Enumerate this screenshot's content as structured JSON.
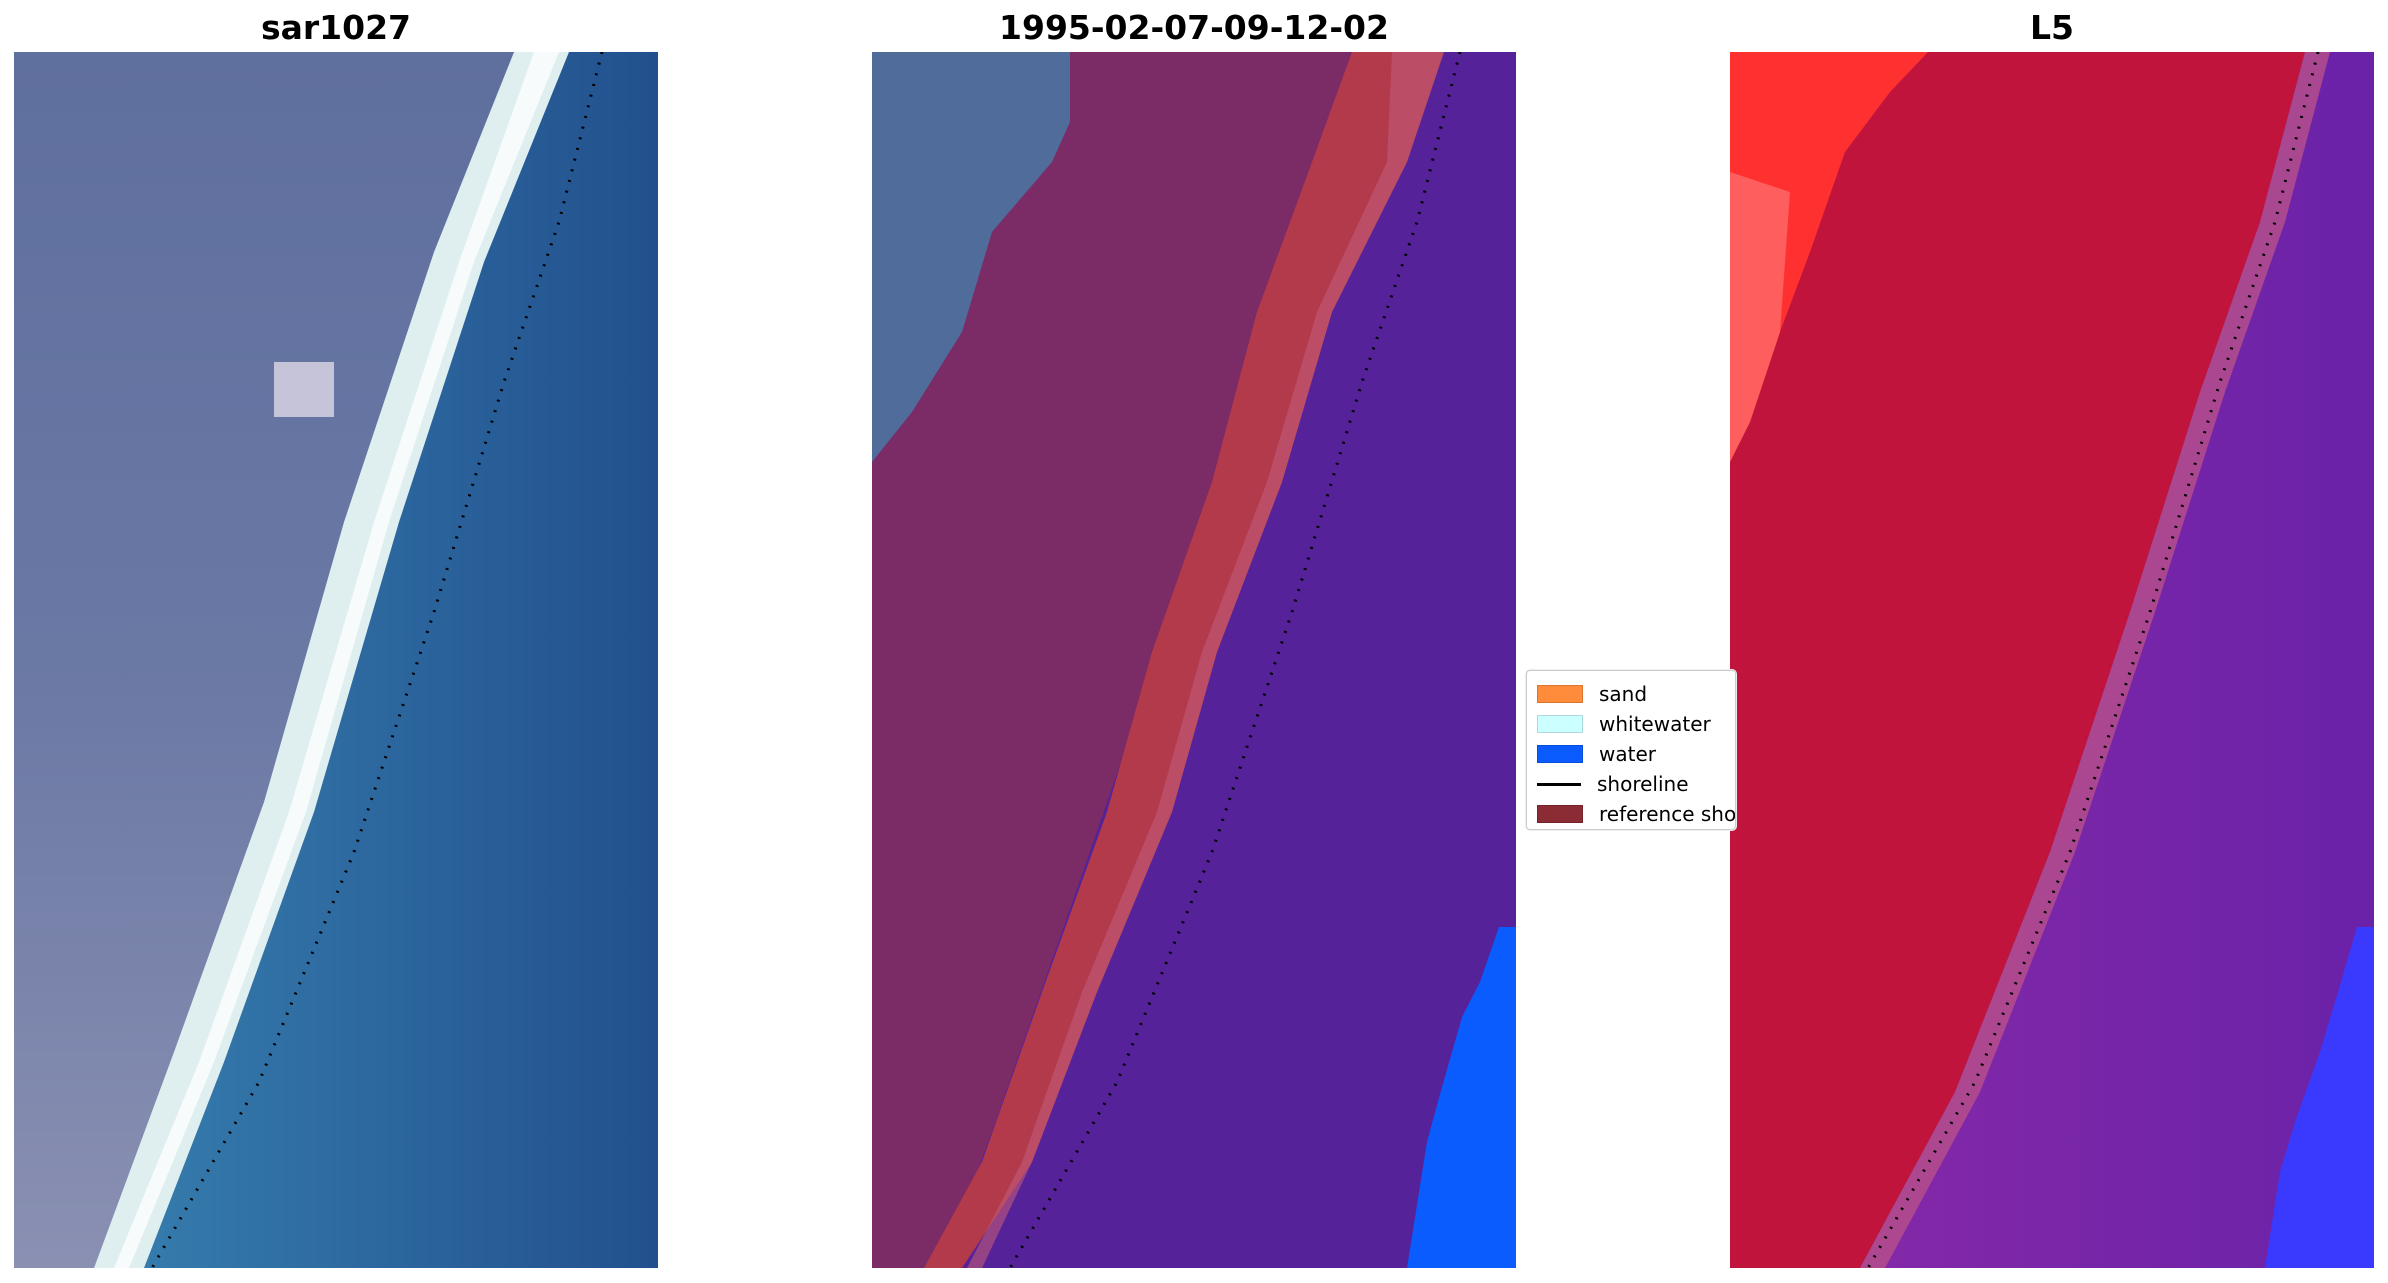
{
  "panels": [
    {
      "title": "sar1027"
    },
    {
      "title": "1995-02-07-09-12-02"
    },
    {
      "title": "L5"
    }
  ],
  "legend": {
    "items": [
      {
        "label": "sand",
        "color": "#ff8c3a",
        "kind": "patch"
      },
      {
        "label": "whitewater",
        "color": "#ccffff",
        "kind": "patch"
      },
      {
        "label": "water",
        "color": "#0a5cff",
        "kind": "patch"
      },
      {
        "label": "shoreline",
        "color": "#000000",
        "kind": "line"
      },
      {
        "label": "reference shoreline buffer",
        "color": "#8b2b34",
        "kind": "patch"
      }
    ]
  },
  "colors": {
    "land_rgb": "#6f7fa8",
    "sea_rgb": "#2c6aa6",
    "surf_rgb": "#e8f4f4",
    "land_classified": "#7b2b66",
    "buffer_classified": "#b33a4a",
    "water_classified": "#55229a",
    "water_class_blue": "#0a5cff",
    "land_index": "#c0143c",
    "land_index_bright": "#ff2a2a",
    "water_index": "#7a28a6",
    "water_index_blue": "#3a3aff"
  }
}
